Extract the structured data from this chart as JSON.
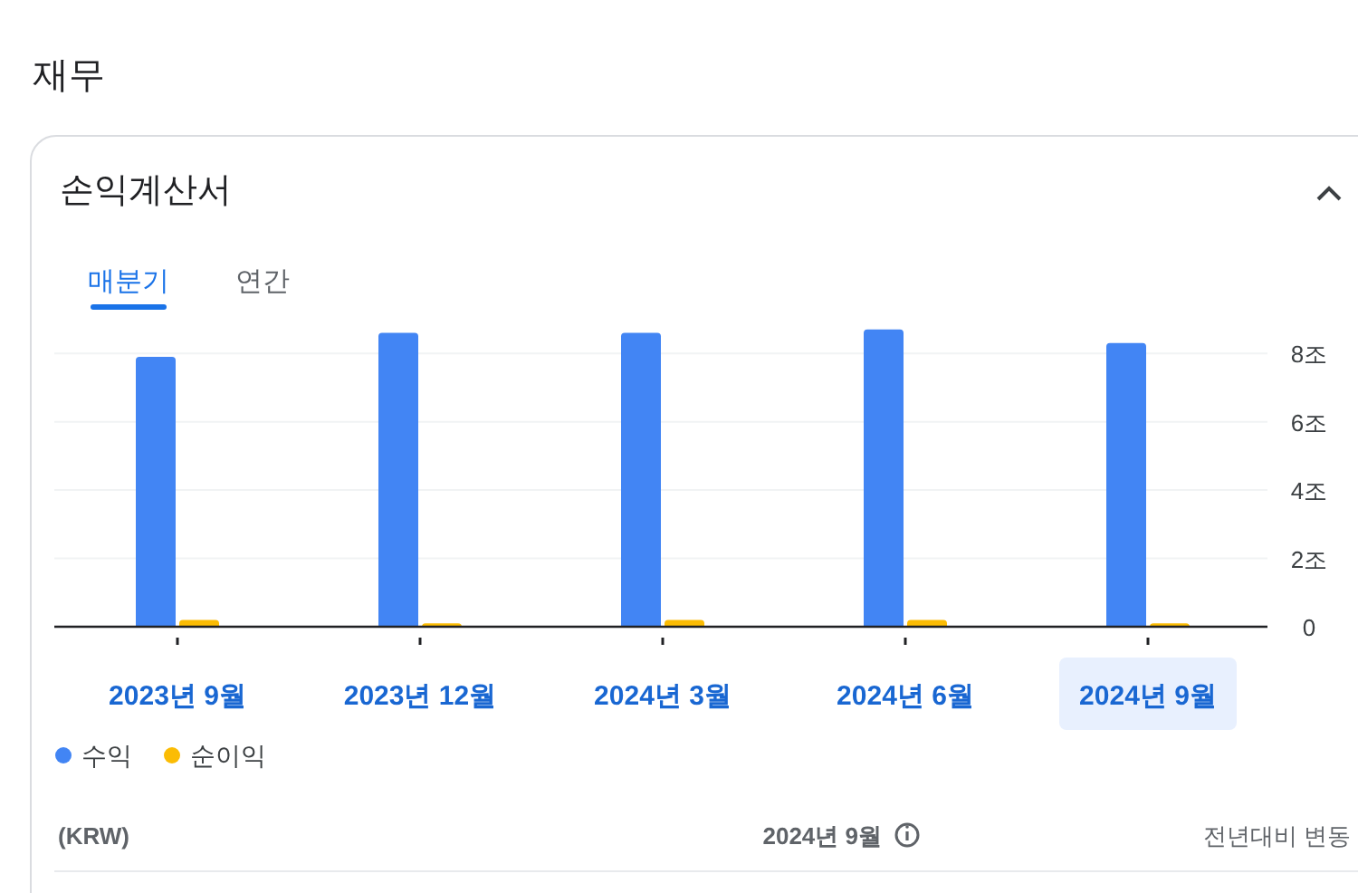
{
  "chart_data": {
    "type": "bar",
    "title": "재무",
    "subtitle": "손익계산서",
    "categories": [
      "2023년 9월",
      "2023년 12월",
      "2024년 3월",
      "2024년 6월",
      "2024년 9월"
    ],
    "series": [
      {
        "name": "수익",
        "color": "#4285f4",
        "values": [
          7.9,
          8.6,
          8.6,
          8.7,
          8.3
        ]
      },
      {
        "name": "순이익",
        "color": "#fbbc04",
        "values": [
          0.2,
          0.1,
          0.2,
          0.2,
          0.1
        ]
      }
    ],
    "ylim": [
      0,
      8.8
    ],
    "yticks": [
      {
        "value": 0,
        "label": "0"
      },
      {
        "value": 2,
        "label": "2조"
      },
      {
        "value": 4,
        "label": "4조"
      },
      {
        "value": 6,
        "label": "6조"
      },
      {
        "value": 8,
        "label": "8조"
      }
    ],
    "grid": "y",
    "legend": "bottom left",
    "annotations": [
      "매분기",
      "연간",
      "(KRW)",
      "2024년 9월",
      "전년대비 변동"
    ]
  }
}
